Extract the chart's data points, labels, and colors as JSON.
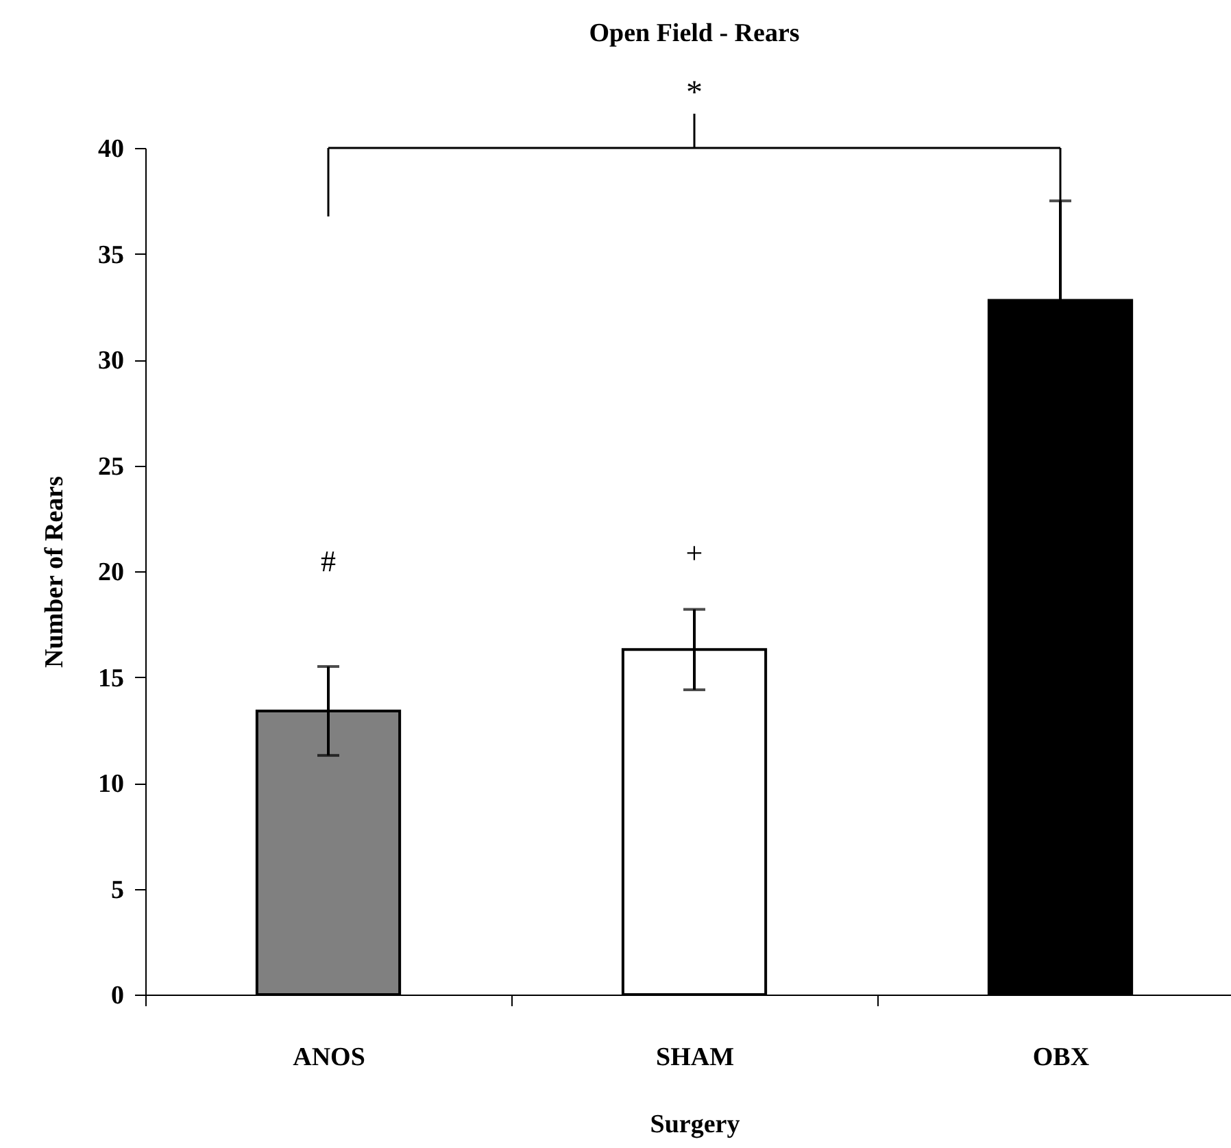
{
  "chart_data": {
    "type": "bar",
    "title": "Open Field - Rears",
    "xlabel": "Surgery",
    "ylabel": "Number of Rears",
    "categories": [
      "ANOS",
      "SHAM",
      "OBX"
    ],
    "values": [
      13.4,
      16.3,
      32.8
    ],
    "colors": [
      "#808080",
      "#ffffff",
      "#000000"
    ],
    "errors": [
      2.1,
      1.9,
      4.7
    ],
    "ylim": [
      0,
      40
    ],
    "yticks": [
      0,
      5,
      10,
      15,
      20,
      25,
      30,
      35,
      40
    ],
    "grid": false,
    "annotations": [
      "*",
      "#",
      "+"
    ]
  }
}
